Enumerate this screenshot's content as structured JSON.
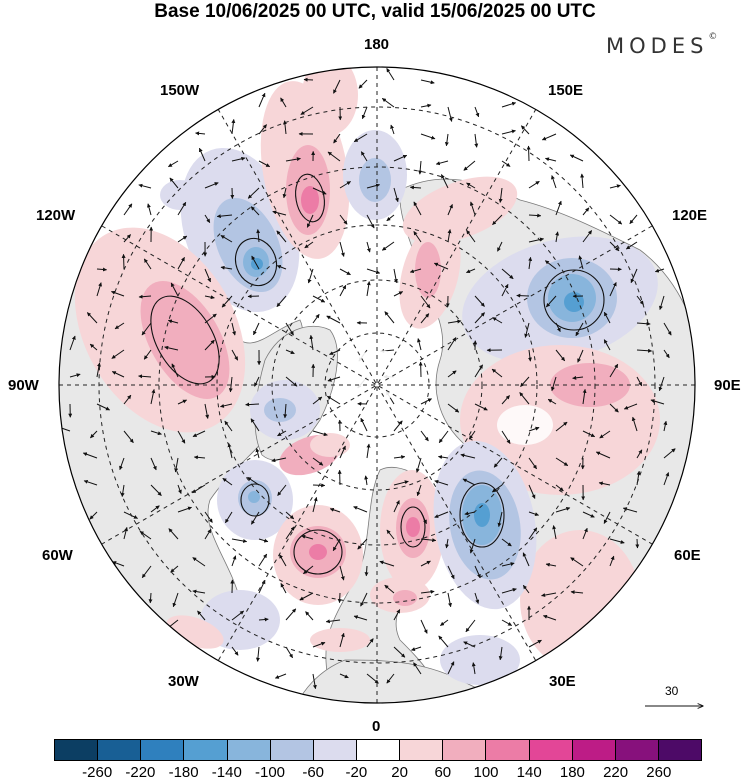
{
  "title": "Base 10/06/2025 00 UTC, valid 15/06/2025 00 UTC",
  "brand": "MODES",
  "brand_mark": "©",
  "longitude_labels": {
    "lon_180": "180",
    "lon_150w": "150W",
    "lon_150e": "150E",
    "lon_120w": "120W",
    "lon_120e": "120E",
    "lon_90w": "90W",
    "lon_90e": "90E",
    "lon_60w": "60W",
    "lon_60e": "60E",
    "lon_30w": "30W",
    "lon_30e": "30E",
    "lon_0": "0"
  },
  "reference_vector": "30",
  "colorbar": {
    "colors": [
      "#0c3e63",
      "#185f95",
      "#2f80be",
      "#559fd2",
      "#88b5dc",
      "#b3c5e3",
      "#dcdcee",
      "#ffffff",
      "#f7d6d8",
      "#f1aebe",
      "#ec7ca6",
      "#e34697",
      "#bd1c86",
      "#87117c",
      "#4d0a67"
    ],
    "tick_labels": [
      "-260",
      "-220",
      "-180",
      "-140",
      "-100",
      "-60",
      "-20",
      "20",
      "60",
      "100",
      "140",
      "180",
      "220",
      "260"
    ]
  }
}
